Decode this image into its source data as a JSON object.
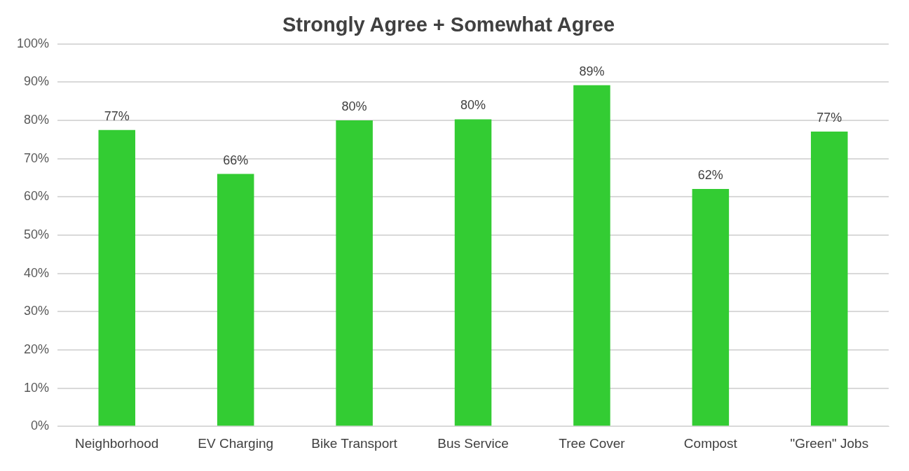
{
  "chart_data": {
    "type": "bar",
    "title": "Strongly Agree + Somewhat Agree",
    "categories": [
      "Neighborhood",
      "EV Charging",
      "Bike Transport",
      "Bus Service",
      "Tree Cover",
      "Compost",
      "\"Green\" Jobs"
    ],
    "values": [
      77.5,
      66,
      80,
      80.3,
      89.2,
      62.1,
      77.1
    ],
    "value_labels": [
      "77%",
      "66%",
      "80%",
      "80%",
      "89%",
      "62%",
      "77%"
    ],
    "color": "#33cc33",
    "ylim": [
      0,
      100
    ],
    "yticks": [
      {
        "value": 0,
        "label": "0%"
      },
      {
        "value": 10,
        "label": "10%"
      },
      {
        "value": 20,
        "label": "20%"
      },
      {
        "value": 30,
        "label": "30%"
      },
      {
        "value": 40,
        "label": "40%"
      },
      {
        "value": 50,
        "label": "50%"
      },
      {
        "value": 60,
        "label": "60%"
      },
      {
        "value": 70,
        "label": "70%"
      },
      {
        "value": 80,
        "label": "80%"
      },
      {
        "value": 90,
        "label": "90%"
      },
      {
        "value": 100,
        "label": "100%"
      }
    ],
    "grid": "y",
    "legend": false
  }
}
